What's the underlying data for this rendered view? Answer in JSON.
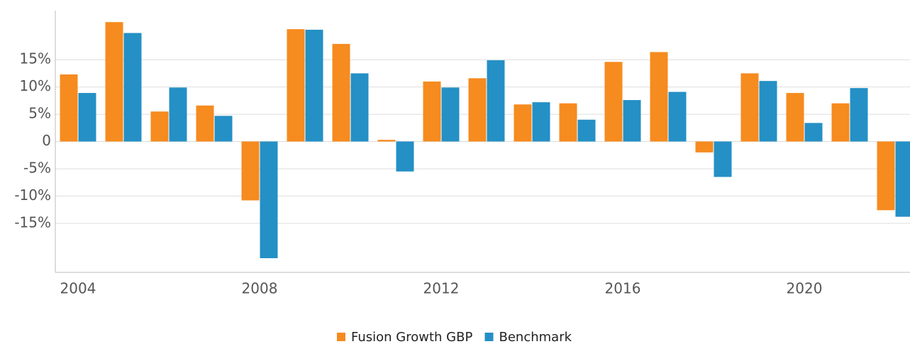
{
  "chart_data": {
    "type": "bar",
    "categories": [
      "2004",
      null,
      null,
      null,
      "2008",
      null,
      null,
      null,
      "2012",
      null,
      null,
      null,
      "2016",
      null,
      null,
      null,
      "2020",
      null,
      null
    ],
    "series": [
      {
        "name": "Fusion Growth GBP",
        "color": "#f68b1f",
        "values": [
          12.3,
          21.9,
          5.5,
          6.6,
          -10.8,
          20.6,
          17.9,
          0.3,
          11.0,
          11.6,
          6.8,
          7.0,
          14.6,
          16.4,
          -2.0,
          12.5,
          8.9,
          7.0,
          -12.6
        ]
      },
      {
        "name": "Benchmark",
        "color": "#2490c5",
        "values": [
          8.9,
          19.9,
          9.9,
          4.7,
          -21.4,
          20.5,
          12.5,
          -5.5,
          9.9,
          14.9,
          7.2,
          4.0,
          7.6,
          9.1,
          -6.5,
          11.1,
          3.4,
          9.8,
          -13.8
        ]
      }
    ],
    "ylim": [
      -24,
      24
    ],
    "yticks": [
      {
        "value": -15,
        "label": "-15%"
      },
      {
        "value": -10,
        "label": "-10%"
      },
      {
        "value": -5,
        "label": "-5%"
      },
      0,
      {
        "value": 5,
        "label": "5%"
      },
      {
        "value": 10,
        "label": "10%"
      },
      {
        "value": 15,
        "label": "15%"
      }
    ],
    "grid": true
  }
}
